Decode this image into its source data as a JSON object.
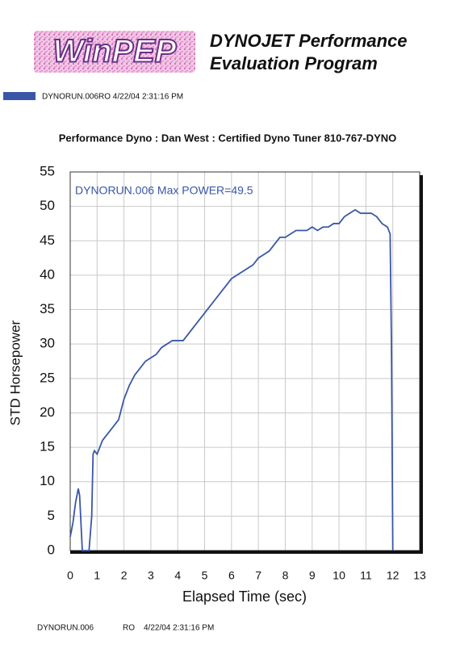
{
  "header": {
    "logo": "WinPEP",
    "line1": "DYNOJET Performance",
    "line2": "Evaluation Program"
  },
  "chart_data": {
    "type": "line",
    "title": "Performance Dyno : Dan West : Certified Dyno Tuner  810-767-DYNO",
    "annotation": "DYNORUN.006  Max POWER=49.5",
    "x_label": "Elapsed Time (sec)",
    "y_label": "STD Horsepower",
    "x": [
      0,
      0.1,
      0.2,
      0.3,
      0.35,
      0.4,
      0.45,
      0.7,
      0.8,
      0.85,
      0.9,
      1.0,
      1.1,
      1.2,
      1.4,
      1.6,
      1.8,
      2.0,
      2.2,
      2.4,
      2.6,
      2.8,
      3.0,
      3.2,
      3.4,
      3.6,
      3.8,
      4.0,
      4.2,
      4.4,
      4.6,
      4.8,
      5.0,
      5.2,
      5.4,
      5.6,
      5.8,
      6.0,
      6.2,
      6.4,
      6.6,
      6.8,
      7.0,
      7.2,
      7.4,
      7.6,
      7.8,
      8.0,
      8.2,
      8.4,
      8.6,
      8.8,
      9.0,
      9.2,
      9.4,
      9.6,
      9.8,
      10.0,
      10.2,
      10.4,
      10.6,
      10.8,
      11.0,
      11.2,
      11.4,
      11.6,
      11.8,
      11.9,
      11.95,
      12.0
    ],
    "series": [
      {
        "name": "DYNORUN.006RO  4/22/04 2:31:16 PM",
        "color": "#3a57a6",
        "values": [
          2,
          4,
          7,
          9,
          8,
          4,
          0,
          0,
          5,
          14,
          14.5,
          14,
          15,
          16,
          17,
          18,
          19,
          22,
          24,
          25.5,
          26.5,
          27.5,
          28,
          28.5,
          29.5,
          30,
          30.5,
          30.5,
          30.5,
          31.5,
          32.5,
          33.5,
          34.5,
          35.5,
          36.5,
          37.5,
          38.5,
          39.5,
          40,
          40.5,
          41,
          41.5,
          42.5,
          43,
          43.5,
          44.5,
          45.5,
          45.5,
          46,
          46.5,
          46.5,
          46.5,
          47,
          46.5,
          47,
          47,
          47.5,
          47.5,
          48.5,
          49,
          49.5,
          49,
          49,
          49,
          48.5,
          47.5,
          47,
          46,
          30,
          0
        ]
      }
    ],
    "xlim": [
      0,
      13
    ],
    "xticks": [
      0,
      1,
      2,
      3,
      4,
      5,
      6,
      7,
      8,
      9,
      10,
      11,
      12,
      13
    ],
    "ylim": [
      0,
      55
    ],
    "yticks": [
      0,
      5,
      10,
      15,
      20,
      25,
      30,
      35,
      40,
      45,
      50,
      55
    ],
    "grid": true
  },
  "footer": {
    "run": "DYNORUN.006",
    "code": "RO",
    "date": "4/22/04 2:31:16 PM"
  }
}
